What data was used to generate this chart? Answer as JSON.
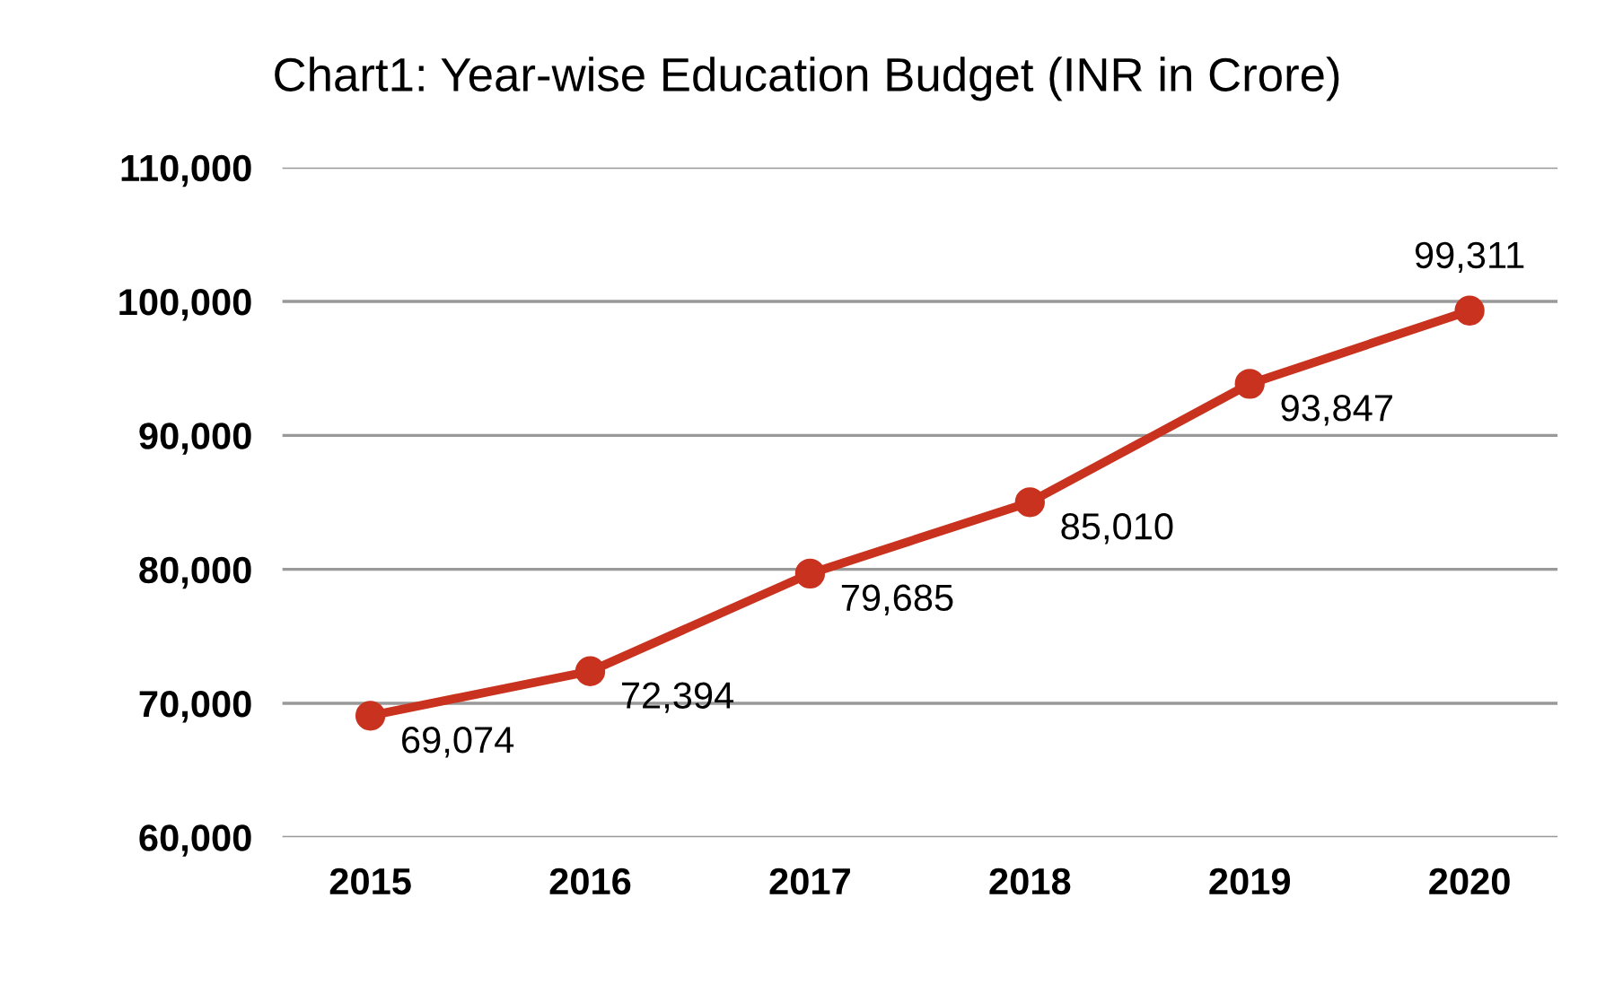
{
  "chart_data": {
    "type": "line",
    "title": "Chart1: Year-wise Education Budget (INR in Crore)",
    "categories": [
      "2015",
      "2016",
      "2017",
      "2018",
      "2019",
      "2020"
    ],
    "series": [
      {
        "color": "#c8321e",
        "values": [
          69074,
          72394,
          79685,
          85010,
          93847,
          99311
        ],
        "value_labels": [
          "69,074",
          "72,394",
          "79,685",
          "85,010",
          "93,847",
          "99,311"
        ]
      }
    ],
    "ylim": [
      60000,
      110000
    ],
    "yticks": [
      {
        "value": 60000,
        "label": "60,000"
      },
      {
        "value": 70000,
        "label": "70,000"
      },
      {
        "value": 80000,
        "label": "80,000"
      },
      {
        "value": 90000,
        "label": "90,000"
      },
      {
        "value": 100000,
        "label": "100,000"
      },
      {
        "value": 110000,
        "label": "110,000"
      }
    ],
    "grid": "y",
    "marker": "circle",
    "line_style": "solid",
    "legend": false
  }
}
